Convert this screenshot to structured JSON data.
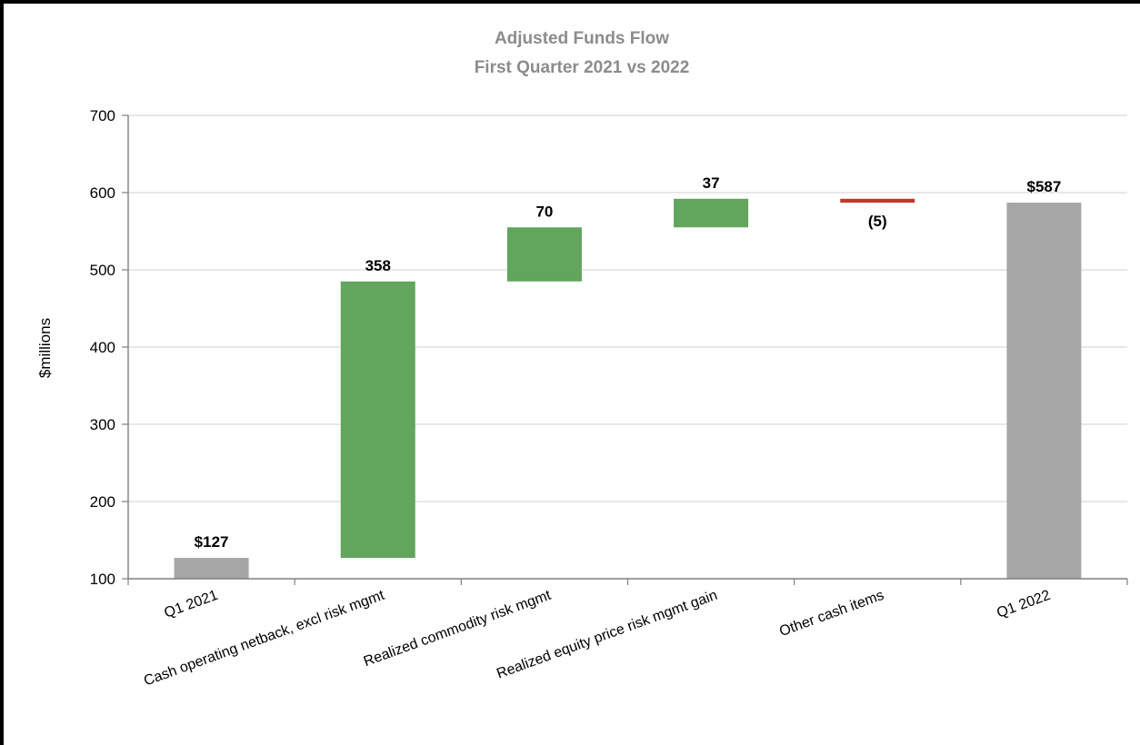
{
  "chart_data": {
    "type": "bar",
    "subtype": "waterfall",
    "title": "Adjusted Funds Flow",
    "subtitle": "First Quarter 2021 vs 2022",
    "xlabel": "",
    "ylabel": "$millions",
    "ylim": [
      100,
      700
    ],
    "yticks": [
      "100",
      "200",
      "300",
      "400",
      "500",
      "600",
      "700"
    ],
    "grid": true,
    "categories": [
      "Q1 2021",
      "Cash operating netback, excl risk mgmt",
      "Realized commodity risk mgmt",
      "Realized equity price risk mgmt gain",
      "Other cash items",
      "Q1 2022"
    ],
    "bars": [
      {
        "kind": "total",
        "start": 0,
        "end": 127,
        "label": "$127",
        "color": "#a6a6a6"
      },
      {
        "kind": "increase",
        "start": 127,
        "end": 485,
        "label": "358",
        "color": "#62a55d"
      },
      {
        "kind": "increase",
        "start": 485,
        "end": 555,
        "label": "70",
        "color": "#62a55d"
      },
      {
        "kind": "increase",
        "start": 555,
        "end": 592,
        "label": "37",
        "color": "#62a55d"
      },
      {
        "kind": "decrease",
        "start": 592,
        "end": 587,
        "label": "(5)",
        "color": "#c0392b"
      },
      {
        "kind": "total",
        "start": 0,
        "end": 587,
        "label": "$587",
        "color": "#a6a6a6"
      }
    ],
    "colors": {
      "total": "#a6a6a6",
      "increase": "#62a55d",
      "decrease": "#c0392b",
      "title": "#8c8c8c",
      "grid": "#d9d9d9",
      "axis": "#7f7f7f"
    }
  }
}
